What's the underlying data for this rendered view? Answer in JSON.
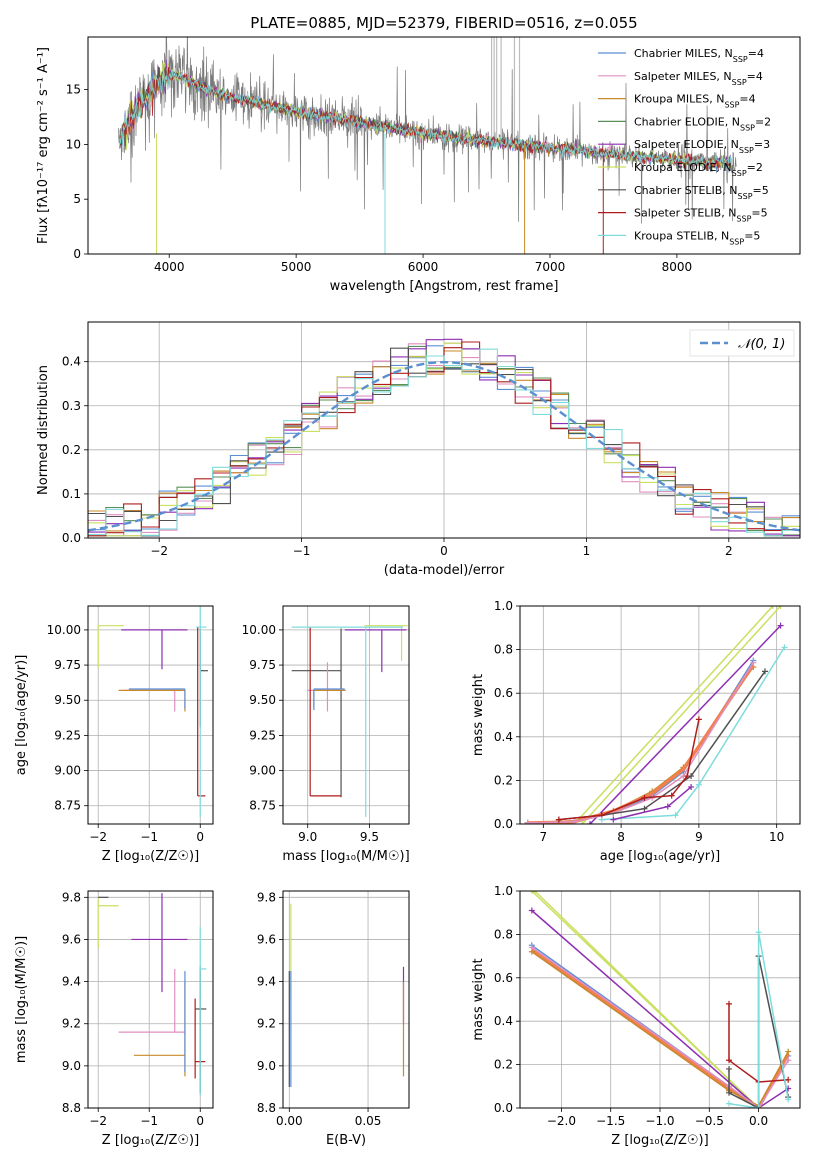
{
  "colors": {
    "Chabrier MILES": "#5b8fd6",
    "Salpeter MILES": "#e08fc0",
    "Kroupa MILES": "#c8892a",
    "Chabrier ELODIE": "#5a8f5a",
    "Salpeter ELODIE": "#8e2fb2",
    "Kroupa ELODIE": "#c9e060",
    "Chabrier STELIB": "#505050",
    "Salpeter STELIB": "#b01c1c",
    "Kroupa STELIB": "#7fdcdc",
    "thick_orange": "#f08050",
    "gauss": "#5a8fd0"
  },
  "chart_data": [
    {
      "id": "spectrum",
      "type": "line",
      "title": "PLATE=0885, MJD=52379, FIBERID=0516, z=0.055",
      "xlabel": "wavelength [Angstrom, rest frame]",
      "ylabel": "Flux [fλ10⁻¹⁷ erg cm⁻² s⁻¹ A⁻¹]",
      "xlim": [
        3360,
        8970
      ],
      "ylim": [
        0,
        19.8
      ],
      "xticks": [
        4000,
        5000,
        6000,
        7000,
        8000
      ],
      "yticks": [
        0,
        5,
        10,
        15
      ],
      "legend_position": "top-right",
      "legend": [
        {
          "name": "Chabrier MILES",
          "nssp": "4"
        },
        {
          "name": "Salpeter MILES",
          "nssp": "4"
        },
        {
          "name": "Kroupa MILES",
          "nssp": "4"
        },
        {
          "name": "Chabrier ELODIE",
          "nssp": "2"
        },
        {
          "name": "Salpeter ELODIE",
          "nssp": "3"
        },
        {
          "name": "Kroupa ELODIE",
          "nssp": "2"
        },
        {
          "name": "Chabrier STELIB",
          "nssp": "5"
        },
        {
          "name": "Salpeter STELIB",
          "nssp": "5"
        },
        {
          "name": "Kroupa STELIB",
          "nssp": "5"
        }
      ],
      "continuum": {
        "x": [
          3600,
          3700,
          3800,
          3900,
          4000,
          4100,
          4300,
          4500,
          5000,
          5500,
          6000,
          6500,
          7000,
          7500,
          8000,
          8500
        ],
        "y": [
          10,
          12.5,
          14,
          15.5,
          16.4,
          16.1,
          15.0,
          14.3,
          13.0,
          12.0,
          11.0,
          10.3,
          9.7,
          9.1,
          8.6,
          8.2
        ]
      }
    },
    {
      "id": "residuals",
      "type": "step",
      "xlabel": "(data-model)/error",
      "ylabel": "Normed distribution",
      "xlim": [
        -2.5,
        2.5
      ],
      "ylim": [
        0,
        0.49
      ],
      "xticks": [
        -2,
        -1,
        0,
        1,
        2
      ],
      "yticks": [
        0.0,
        0.1,
        0.2,
        0.3,
        0.4
      ],
      "legend_position": "top-right",
      "legend_label": "𝒩(0, 1)",
      "gaussian": {
        "mu": 0,
        "sigma": 1
      }
    },
    {
      "id": "age-vs-Z",
      "type": "errorbar",
      "xlabel": "Z [log₁₀(Z/Z☉)]",
      "ylabel": "age  [log₁₀(age/yr)]",
      "xlim": [
        -2.2,
        0.25
      ],
      "ylim": [
        8.62,
        10.17
      ],
      "xticks": [
        -2,
        -1,
        0
      ],
      "yticks": [
        8.75,
        9.0,
        9.25,
        9.5,
        9.75,
        10.0
      ],
      "points": [
        {
          "series": "Kroupa ELODIE",
          "x": -2.0,
          "y": 10.03,
          "xerr": [
            0.0,
            0.5
          ],
          "yerr": [
            0.3,
            0.0
          ]
        },
        {
          "series": "Salpeter ELODIE",
          "x": -0.75,
          "y": 10.0,
          "xerr": [
            0.8,
            0.5
          ],
          "yerr": [
            0.28,
            0.0
          ]
        },
        {
          "series": "Salpeter MILES",
          "x": -0.5,
          "y": 9.57,
          "xerr": [
            1.0,
            0.15
          ],
          "yerr": [
            0.15,
            0.0
          ]
        },
        {
          "series": "Kroupa MILES",
          "x": -0.3,
          "y": 9.57,
          "xerr": [
            1.3,
            0.0
          ],
          "yerr": [
            0.15,
            0.0
          ]
        },
        {
          "series": "Chabrier MILES",
          "x": -0.3,
          "y": 9.58,
          "xerr": [
            1.1,
            0.0
          ],
          "yerr": [
            0.14,
            0.0
          ]
        },
        {
          "series": "Chabrier STELIB",
          "x": 0.0,
          "y": 9.71,
          "xerr": [
            0.0,
            0.15
          ],
          "yerr": [
            0.4,
            0.3
          ]
        },
        {
          "series": "Salpeter STELIB",
          "x": -0.05,
          "y": 8.82,
          "xerr": [
            0.0,
            0.15
          ],
          "yerr": [
            0.0,
            1.2
          ]
        },
        {
          "series": "Kroupa STELIB",
          "x": 0.0,
          "y": 10.02,
          "xerr": [
            0.08,
            0.12
          ],
          "yerr": [
            1.35,
            0.15
          ]
        }
      ]
    },
    {
      "id": "age-vs-mass",
      "type": "errorbar",
      "xlabel": "mass [log₁₀(M/M☉)]",
      "ylabel": "",
      "xlim": [
        8.8,
        9.82
      ],
      "ylim": [
        8.62,
        10.17
      ],
      "xticks": [
        9.0,
        9.5
      ],
      "yticks": [
        8.75,
        9.0,
        9.25,
        9.5,
        9.75,
        10.0
      ],
      "points": [
        {
          "series": "Kroupa ELODIE",
          "x": 9.76,
          "y": 10.03,
          "xerr": [
            0.3,
            0.05
          ],
          "yerr": [
            0.25,
            0.0
          ]
        },
        {
          "series": "Salpeter ELODIE",
          "x": 9.6,
          "y": 10.0,
          "xerr": [
            0.3,
            0.2
          ],
          "yerr": [
            0.3,
            0.0
          ]
        },
        {
          "series": "Chabrier STELIB",
          "x": 9.27,
          "y": 9.71,
          "xerr": [
            0.4,
            0.0
          ],
          "yerr": [
            0.9,
            0.3
          ]
        },
        {
          "series": "Salpeter MILES",
          "x": 9.16,
          "y": 9.57,
          "xerr": [
            0.16,
            0.15
          ],
          "yerr": [
            0.15,
            0.2
          ]
        },
        {
          "series": "Kroupa MILES",
          "x": 9.05,
          "y": 9.57,
          "xerr": [
            0.0,
            0.25
          ],
          "yerr": [
            0.12,
            0.0
          ]
        },
        {
          "series": "Chabrier MILES",
          "x": 9.05,
          "y": 9.58,
          "xerr": [
            0.0,
            0.25
          ],
          "yerr": [
            0.15,
            0.0
          ]
        },
        {
          "series": "Salpeter STELIB",
          "x": 9.02,
          "y": 8.82,
          "xerr": [
            0.0,
            0.25
          ],
          "yerr": [
            0.0,
            1.2
          ]
        },
        {
          "series": "Kroupa STELIB",
          "x": 9.47,
          "y": 10.02,
          "xerr": [
            0.6,
            0.3
          ],
          "yerr": [
            1.35,
            0.0
          ]
        }
      ]
    },
    {
      "id": "weight-vs-age",
      "type": "line",
      "xlabel": "age  [log₁₀(age/yr)]",
      "ylabel": "mass weight",
      "xlim": [
        6.7,
        10.3
      ],
      "ylim": [
        0,
        1.0
      ],
      "xticks": [
        7,
        8,
        9,
        10
      ],
      "yticks": [
        0.0,
        0.2,
        0.4,
        0.6,
        0.8,
        1.0
      ],
      "series": [
        {
          "name": "Kroupa ELODIE",
          "x": [
            7.5,
            10.05
          ],
          "y": [
            0.0,
            1.0
          ]
        },
        {
          "name": "Kroupa ELODIE",
          "x": [
            7.4,
            9.95
          ],
          "y": [
            0.0,
            1.0
          ]
        },
        {
          "name": "Salpeter ELODIE",
          "x": [
            7.6,
            10.05
          ],
          "y": [
            0.0,
            0.91
          ]
        },
        {
          "name": "Chabrier MILES",
          "x": [
            6.8,
            7.4,
            7.9,
            8.4,
            8.8,
            9.7
          ],
          "y": [
            0.005,
            0.01,
            0.05,
            0.13,
            0.24,
            0.75
          ]
        },
        {
          "name": "Kroupa MILES",
          "x": [
            6.8,
            7.4,
            7.9,
            8.4,
            8.8,
            9.7
          ],
          "y": [
            0.005,
            0.015,
            0.06,
            0.15,
            0.26,
            0.72
          ]
        },
        {
          "name": "thick_orange",
          "x": [
            6.8,
            7.4,
            7.9,
            8.4,
            8.8,
            9.7
          ],
          "y": [
            0.005,
            0.01,
            0.06,
            0.14,
            0.25,
            0.73
          ]
        },
        {
          "name": "Salpeter MILES",
          "x": [
            6.8,
            7.4,
            7.9,
            8.4,
            8.8,
            9.7
          ],
          "y": [
            0.005,
            0.01,
            0.05,
            0.12,
            0.22,
            0.74
          ]
        },
        {
          "name": "Chabrier STELIB",
          "x": [
            7.2,
            7.75,
            8.3,
            8.9,
            9.85
          ],
          "y": [
            0.02,
            0.04,
            0.07,
            0.22,
            0.7
          ]
        },
        {
          "name": "Salpeter STELIB",
          "x": [
            7.2,
            7.75,
            8.3,
            8.65,
            8.85,
            9.0
          ],
          "y": [
            0.02,
            0.04,
            0.12,
            0.13,
            0.22,
            0.48
          ]
        },
        {
          "name": "Kroupa STELIB",
          "x": [
            7.75,
            8.7,
            9.0,
            10.1
          ],
          "y": [
            0.02,
            0.04,
            0.18,
            0.81
          ]
        },
        {
          "name": "Salpeter ELODIE",
          "x": [
            7.9,
            8.6,
            8.9
          ],
          "y": [
            0.02,
            0.08,
            0.17
          ]
        }
      ]
    },
    {
      "id": "mass-vs-Z",
      "type": "errorbar",
      "xlabel": "Z [log₁₀(Z/Z☉)]",
      "ylabel": "mass [log₁₀(M/M☉)]",
      "xlim": [
        -2.2,
        0.25
      ],
      "ylim": [
        8.8,
        9.83
      ],
      "xticks": [
        -2,
        -1,
        0
      ],
      "yticks": [
        8.8,
        9.0,
        9.2,
        9.4,
        9.6,
        9.8
      ],
      "points": [
        {
          "series": "Kroupa ELODIE",
          "x": -2.0,
          "y": 9.76,
          "xerr": [
            0.0,
            0.4
          ],
          "yerr": [
            0.2,
            0.04
          ]
        },
        {
          "series": "Chabrier STELIB",
          "x": -2.0,
          "y": 9.8,
          "xerr": [
            0.0,
            0.2
          ],
          "yerr": [
            0.0,
            0.0
          ]
        },
        {
          "series": "Salpeter ELODIE",
          "x": -0.75,
          "y": 9.6,
          "xerr": [
            0.6,
            0.5
          ],
          "yerr": [
            0.25,
            0.22
          ]
        },
        {
          "series": "Salpeter MILES",
          "x": -0.5,
          "y": 9.16,
          "xerr": [
            1.1,
            0.2
          ],
          "yerr": [
            0.0,
            0.3
          ]
        },
        {
          "series": "Kroupa MILES",
          "x": -0.3,
          "y": 9.05,
          "xerr": [
            1.0,
            0.0
          ],
          "yerr": [
            0.1,
            0.35
          ]
        },
        {
          "series": "Chabrier MILES",
          "x": -0.3,
          "y": 9.05,
          "xerr": [
            0.0,
            0.0
          ],
          "yerr": [
            0.08,
            0.4
          ]
        },
        {
          "series": "Salpeter STELIB",
          "x": -0.1,
          "y": 9.02,
          "xerr": [
            0.0,
            0.2
          ],
          "yerr": [
            0.08,
            0.3
          ]
        },
        {
          "series": "Chabrier STELIB",
          "x": 0.0,
          "y": 9.27,
          "xerr": [
            0.1,
            0.12
          ],
          "yerr": [
            0.4,
            0.2
          ]
        },
        {
          "series": "Kroupa STELIB",
          "x": 0.0,
          "y": 9.46,
          "xerr": [
            0.0,
            0.12
          ],
          "yerr": [
            0.6,
            0.2
          ]
        }
      ]
    },
    {
      "id": "mass-vs-EBV",
      "type": "errorbar",
      "xlabel": "E(B-V)",
      "ylabel": "",
      "xlim": [
        -0.004,
        0.076
      ],
      "ylim": [
        8.8,
        9.83
      ],
      "xticks": [
        0.0,
        0.05
      ],
      "yticks": [
        8.8,
        9.0,
        9.2,
        9.4,
        9.6,
        9.8
      ],
      "points": [
        {
          "series": "Kroupa ELODIE",
          "x": 0.001,
          "y": 9.62,
          "xerr": [
            0.0,
            0.0
          ],
          "yerr": [
            0.3,
            0.15
          ]
        },
        {
          "series": "Chabrier MILES",
          "x": 0.001,
          "y": 9.2,
          "xerr": [
            0.0,
            0.0
          ],
          "yerr": [
            0.3,
            0.25
          ]
        },
        {
          "series": "Chabrier STELIB",
          "x": 0.0,
          "y": 9.0,
          "xerr": [
            0.0,
            0.0
          ],
          "yerr": [
            0.1,
            0.45
          ]
        },
        {
          "series": "Salpeter ELODIE",
          "x": 0.0725,
          "y": 9.3,
          "xerr": [
            0.0,
            0.0
          ],
          "yerr": [
            0.1,
            0.17
          ]
        },
        {
          "series": "Kroupa MILES",
          "x": 0.0725,
          "y": 9.15,
          "xerr": [
            0.0,
            0.0
          ],
          "yerr": [
            0.2,
            0.25
          ]
        }
      ]
    },
    {
      "id": "weight-vs-Z",
      "type": "line",
      "xlabel": "Z [log₁₀(Z/Z☉)]",
      "ylabel": "mass weight",
      "xlim": [
        -2.42,
        0.42
      ],
      "ylim": [
        0,
        1.0
      ],
      "xticks": [
        -2.0,
        -1.5,
        -1.0,
        -0.5,
        0.0
      ],
      "yticks": [
        0.0,
        0.2,
        0.4,
        0.6,
        0.8,
        1.0
      ],
      "series": [
        {
          "name": "Kroupa ELODIE",
          "x": [
            -2.3,
            0.0
          ],
          "y": [
            1.0,
            0.0
          ]
        },
        {
          "name": "Kroupa ELODIE",
          "x": [
            -2.27,
            0.0
          ],
          "y": [
            1.0,
            0.0
          ]
        },
        {
          "name": "Salpeter ELODIE",
          "x": [
            -2.3,
            0.0,
            0.3
          ],
          "y": [
            0.91,
            0.0,
            0.09
          ]
        },
        {
          "name": "Chabrier MILES",
          "x": [
            -2.3,
            -0.3,
            0.0,
            0.3
          ],
          "y": [
            0.75,
            0.1,
            0.0,
            0.24
          ]
        },
        {
          "name": "thick_orange",
          "x": [
            -2.3,
            -0.3,
            0.0,
            0.3
          ],
          "y": [
            0.73,
            0.09,
            0.0,
            0.25
          ]
        },
        {
          "name": "Kroupa MILES",
          "x": [
            -2.3,
            -0.3,
            0.0,
            0.3
          ],
          "y": [
            0.72,
            0.08,
            0.01,
            0.26
          ]
        },
        {
          "name": "Salpeter MILES",
          "x": [
            -2.3,
            -0.3,
            0.0,
            0.3
          ],
          "y": [
            0.74,
            0.1,
            0.0,
            0.22
          ]
        },
        {
          "name": "Salpeter STELIB",
          "x": [
            -0.3,
            -0.3,
            0.0,
            0.3
          ],
          "y": [
            0.48,
            0.22,
            0.12,
            0.13
          ]
        },
        {
          "name": "Chabrier STELIB",
          "x": [
            -0.3,
            -0.3,
            0.0,
            0.0,
            0.3
          ],
          "y": [
            0.18,
            0.07,
            0.0,
            0.7,
            0.05
          ]
        },
        {
          "name": "Kroupa STELIB",
          "x": [
            -0.3,
            0.0,
            0.0,
            0.3
          ],
          "y": [
            0.02,
            0.0,
            0.81,
            0.04
          ]
        }
      ]
    }
  ]
}
